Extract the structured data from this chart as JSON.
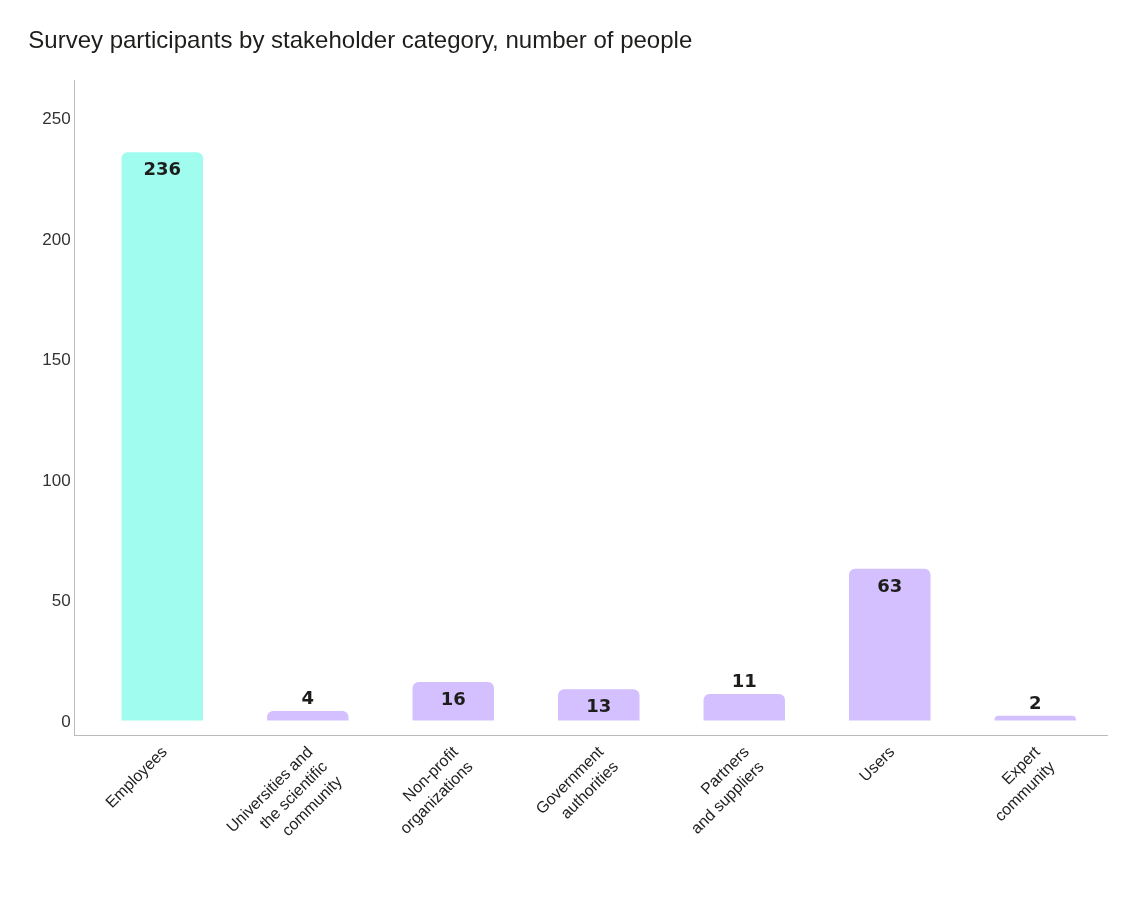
{
  "chart_data": {
    "type": "bar",
    "title": "Survey participants by stakeholder category, number of people",
    "categories": [
      "Employees",
      "Universities and\nthe scientific\ncommunity",
      "Non-profit\norganizations",
      "Government\nauthorities",
      "Partners\nand suppliers",
      "Users",
      "Expert\ncommunity"
    ],
    "values": [
      236,
      4,
      16,
      13,
      11,
      63,
      2
    ],
    "colors": [
      "#9ffcee",
      "#d4bfff",
      "#d4bfff",
      "#d4bfff",
      "#d4bfff",
      "#d4bfff",
      "#d4bfff"
    ],
    "ylim": [
      -6,
      266
    ],
    "yticks": [
      0,
      50,
      100,
      150,
      200,
      250
    ],
    "data_labels": true
  }
}
